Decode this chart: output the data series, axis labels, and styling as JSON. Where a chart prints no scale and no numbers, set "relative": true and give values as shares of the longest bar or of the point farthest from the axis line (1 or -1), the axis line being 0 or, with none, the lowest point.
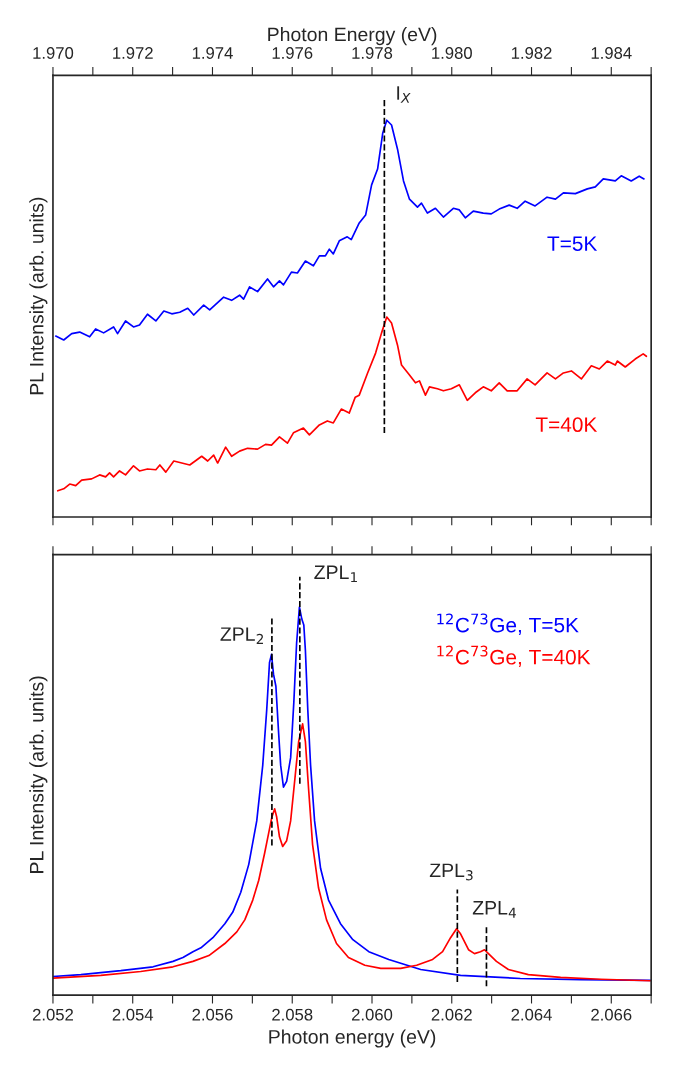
{
  "chart_data": [
    {
      "type": "line",
      "relative": true,
      "xlabel": "Photon Energy (eV)",
      "ylabel": "PL Intensity (arb. units)",
      "xlim": [
        1.97,
        1.985
      ],
      "xticks": [
        {
          "value": 1.97,
          "label": "1.970"
        },
        {
          "value": 1.971,
          "label": null
        },
        {
          "value": 1.972,
          "label": "1.972"
        },
        {
          "value": 1.973,
          "label": null
        },
        {
          "value": 1.974,
          "label": "1.974"
        },
        {
          "value": 1.975,
          "label": null
        },
        {
          "value": 1.976,
          "label": "1.976"
        },
        {
          "value": 1.977,
          "label": null
        },
        {
          "value": 1.978,
          "label": "1.978"
        },
        {
          "value": 1.979,
          "label": null
        },
        {
          "value": 1.98,
          "label": "1.980"
        },
        {
          "value": 1.981,
          "label": null
        },
        {
          "value": 1.982,
          "label": "1.982"
        },
        {
          "value": 1.983,
          "label": null
        },
        {
          "value": 1.984,
          "label": "1.984"
        },
        {
          "value": 1.985,
          "label": null
        }
      ],
      "tick_labels": "x",
      "grid": false,
      "legend": false,
      "line_style": "solid",
      "ref_lines": [
        {
          "axis": "x",
          "value": 1.97831,
          "label": "I$_{X}$",
          "color": "#000000",
          "line_style": "dashed"
        }
      ],
      "series": [
        {
          "name": "T=5K",
          "color": "#0000ff",
          "x": [
            1.97007,
            1.97027,
            1.97047,
            1.97067,
            1.97092,
            1.97107,
            1.97127,
            1.97152,
            1.97162,
            1.97182,
            1.97202,
            1.97217,
            1.97237,
            1.97258,
            1.97278,
            1.97298,
            1.97318,
            1.97338,
            1.97353,
            1.97378,
            1.97393,
            1.97428,
            1.97448,
            1.97468,
            1.97478,
            1.97493,
            1.97513,
            1.97538,
            1.97553,
            1.97568,
            1.97578,
            1.97598,
            1.97613,
            1.97633,
            1.97653,
            1.97668,
            1.97683,
            1.97693,
            1.97703,
            1.97718,
            1.97738,
            1.97748,
            1.97768,
            1.97784,
            1.97799,
            1.97814,
            1.97827,
            1.97837,
            1.97849,
            1.97864,
            1.97879,
            1.97894,
            1.97914,
            1.97924,
            1.97939,
            1.97959,
            1.97979,
            1.98004,
            1.98019,
            1.98034,
            1.98054,
            1.98079,
            1.98099,
            1.98119,
            1.98144,
            1.98164,
            1.98184,
            1.98209,
            1.98239,
            1.9826,
            1.9828,
            1.9831,
            1.9834,
            1.9836,
            1.9838,
            1.9841,
            1.98425,
            1.9845,
            1.9847,
            1.98482
          ],
          "values": [
            0.456,
            0.446,
            0.462,
            0.466,
            0.454,
            0.474,
            0.464,
            0.479,
            0.462,
            0.494,
            0.479,
            0.484,
            0.511,
            0.494,
            0.519,
            0.512,
            0.516,
            0.526,
            0.509,
            0.534,
            0.522,
            0.554,
            0.546,
            0.559,
            0.549,
            0.58,
            0.568,
            0.6,
            0.58,
            0.595,
            0.585,
            0.617,
            0.615,
            0.645,
            0.633,
            0.658,
            0.658,
            0.675,
            0.663,
            0.696,
            0.706,
            0.699,
            0.741,
            0.761,
            0.837,
            0.877,
            0.968,
            1.0,
            0.988,
            0.927,
            0.847,
            0.801,
            0.781,
            0.791,
            0.766,
            0.778,
            0.756,
            0.778,
            0.774,
            0.754,
            0.771,
            0.766,
            0.764,
            0.776,
            0.786,
            0.778,
            0.796,
            0.784,
            0.806,
            0.801,
            0.817,
            0.815,
            0.827,
            0.832,
            0.852,
            0.847,
            0.86,
            0.847,
            0.859,
            0.852
          ]
        },
        {
          "name": "T=40K",
          "color": "#ff0000",
          "x": [
            1.97012,
            1.97027,
            1.97042,
            1.97057,
            1.97072,
            1.97097,
            1.97117,
            1.97132,
            1.97142,
            1.97152,
            1.97167,
            1.97182,
            1.97202,
            1.97217,
            1.97237,
            1.97258,
            1.97268,
            1.97283,
            1.97303,
            1.97323,
            1.97343,
            1.97373,
            1.97388,
            1.97403,
            1.97413,
            1.97433,
            1.97448,
            1.97468,
            1.97488,
            1.97513,
            1.97533,
            1.97548,
            1.97568,
            1.97588,
            1.97603,
            1.97628,
            1.97643,
            1.97668,
            1.97688,
            1.97703,
            1.97723,
            1.97743,
            1.97758,
            1.97768,
            1.97789,
            1.97809,
            1.97824,
            1.97837,
            1.97849,
            1.97864,
            1.97874,
            1.97894,
            1.97909,
            1.97919,
            1.97934,
            1.97944,
            1.97964,
            1.97979,
            1.97999,
            1.98019,
            1.98039,
            1.98059,
            1.98079,
            1.98099,
            1.98119,
            1.98139,
            1.98164,
            1.98189,
            1.98209,
            1.98239,
            1.9826,
            1.9828,
            1.983,
            1.98325,
            1.9835,
            1.9837,
            1.9839,
            1.9841,
            1.98415,
            1.98435,
            1.9846,
            1.9848,
            1.98488
          ],
          "values": [
            0.066,
            0.071,
            0.083,
            0.079,
            0.093,
            0.096,
            0.106,
            0.101,
            0.111,
            0.101,
            0.116,
            0.106,
            0.129,
            0.116,
            0.121,
            0.119,
            0.131,
            0.113,
            0.141,
            0.136,
            0.131,
            0.153,
            0.141,
            0.156,
            0.136,
            0.176,
            0.153,
            0.166,
            0.173,
            0.171,
            0.183,
            0.181,
            0.202,
            0.186,
            0.212,
            0.224,
            0.207,
            0.232,
            0.242,
            0.237,
            0.272,
            0.262,
            0.302,
            0.307,
            0.363,
            0.413,
            0.464,
            0.504,
            0.489,
            0.433,
            0.383,
            0.358,
            0.338,
            0.343,
            0.307,
            0.328,
            0.323,
            0.318,
            0.323,
            0.333,
            0.294,
            0.313,
            0.328,
            0.318,
            0.338,
            0.318,
            0.318,
            0.348,
            0.333,
            0.363,
            0.348,
            0.363,
            0.368,
            0.348,
            0.381,
            0.373,
            0.393,
            0.383,
            0.393,
            0.378,
            0.398,
            0.411,
            0.405
          ]
        }
      ]
    },
    {
      "type": "line",
      "relative": true,
      "xlabel": "Photon energy (eV)",
      "ylabel": "PL Intensity (arb. units)",
      "xlim": [
        2.052,
        2.067
      ],
      "xticks": [
        {
          "value": 2.052,
          "label": "2.052"
        },
        {
          "value": 2.053,
          "label": null
        },
        {
          "value": 2.054,
          "label": "2.054"
        },
        {
          "value": 2.055,
          "label": null
        },
        {
          "value": 2.056,
          "label": "2.056"
        },
        {
          "value": 2.057,
          "label": null
        },
        {
          "value": 2.058,
          "label": "2.058"
        },
        {
          "value": 2.059,
          "label": null
        },
        {
          "value": 2.06,
          "label": "2.060"
        },
        {
          "value": 2.061,
          "label": null
        },
        {
          "value": 2.062,
          "label": "2.062"
        },
        {
          "value": 2.063,
          "label": null
        },
        {
          "value": 2.064,
          "label": "2.064"
        },
        {
          "value": 2.065,
          "label": null
        },
        {
          "value": 2.066,
          "label": "2.066"
        },
        {
          "value": 2.067,
          "label": null
        }
      ],
      "tick_labels": "x",
      "grid": false,
      "legend": "top right",
      "line_style": "solid",
      "ref_lines": [
        {
          "axis": "x",
          "value": 2.05819,
          "label": "ZPL$_{1}$",
          "color": "#000000",
          "line_style": "dashed"
        },
        {
          "axis": "x",
          "value": 2.05749,
          "label": "ZPL$_{2}$",
          "color": "#000000",
          "line_style": "dashed"
        },
        {
          "axis": "x",
          "value": 2.06214,
          "label": "ZPL$_{3}$",
          "color": "#000000",
          "line_style": "dashed"
        },
        {
          "axis": "x",
          "value": 2.06287,
          "label": "ZPL$_{4}$",
          "color": "#000000",
          "line_style": "dashed"
        }
      ],
      "series": [
        {
          "name": "$^{12}$C$^{73}$Ge, T=5K",
          "color": "#0000ff",
          "x": [
            2.052,
            2.0527,
            2.0537,
            2.05451,
            2.05501,
            2.05526,
            2.05551,
            2.05571,
            2.05601,
            2.05631,
            2.05651,
            2.05671,
            2.05691,
            2.05711,
            2.05726,
            2.05736,
            2.05743,
            2.05748,
            2.05753,
            2.05759,
            2.05766,
            2.05771,
            2.05778,
            2.05786,
            2.05796,
            2.05804,
            2.05811,
            2.05818,
            2.05824,
            2.05829,
            2.05833,
            2.05839,
            2.05846,
            2.05856,
            2.05871,
            2.05891,
            2.05921,
            2.05952,
            2.05992,
            2.06042,
            2.06122,
            2.06222,
            2.06372,
            2.06523,
            2.06698
          ],
          "values": [
            0.048,
            0.053,
            0.063,
            0.073,
            0.087,
            0.097,
            0.112,
            0.122,
            0.148,
            0.184,
            0.214,
            0.265,
            0.337,
            0.449,
            0.592,
            0.735,
            0.857,
            0.878,
            0.827,
            0.796,
            0.673,
            0.592,
            0.536,
            0.551,
            0.612,
            0.755,
            0.908,
            1.0,
            0.969,
            0.954,
            0.888,
            0.735,
            0.592,
            0.449,
            0.327,
            0.245,
            0.184,
            0.143,
            0.112,
            0.092,
            0.066,
            0.051,
            0.043,
            0.04,
            0.038
          ]
        },
        {
          "name": "$^{12}$C$^{73}$Ge, T=40K",
          "color": "#ff0000",
          "x": [
            2.052,
            2.0532,
            2.0542,
            2.05501,
            2.05551,
            2.05591,
            2.05631,
            2.05661,
            2.05681,
            2.05701,
            2.05716,
            2.05731,
            2.05741,
            2.05749,
            2.05756,
            2.05761,
            2.05768,
            2.05776,
            2.05786,
            2.05796,
            2.05806,
            2.05816,
            2.05826,
            2.05833,
            2.05841,
            2.05851,
            2.05866,
            2.05886,
            2.05911,
            2.05941,
            2.05982,
            2.06022,
            2.06072,
            2.06112,
            2.06152,
            2.06177,
            2.06197,
            2.06212,
            2.06222,
            2.06242,
            2.06257,
            2.06272,
            2.06282,
            2.06292,
            2.06312,
            2.06342,
            2.06392,
            2.06473,
            2.06573,
            2.06698
          ],
          "values": [
            0.044,
            0.051,
            0.061,
            0.073,
            0.087,
            0.102,
            0.133,
            0.163,
            0.194,
            0.245,
            0.296,
            0.367,
            0.418,
            0.459,
            0.48,
            0.459,
            0.408,
            0.383,
            0.398,
            0.449,
            0.551,
            0.653,
            0.699,
            0.653,
            0.531,
            0.388,
            0.276,
            0.194,
            0.133,
            0.097,
            0.077,
            0.069,
            0.069,
            0.077,
            0.092,
            0.112,
            0.148,
            0.171,
            0.158,
            0.117,
            0.107,
            0.112,
            0.117,
            0.107,
            0.087,
            0.066,
            0.053,
            0.046,
            0.041,
            0.037
          ]
        }
      ]
    }
  ]
}
